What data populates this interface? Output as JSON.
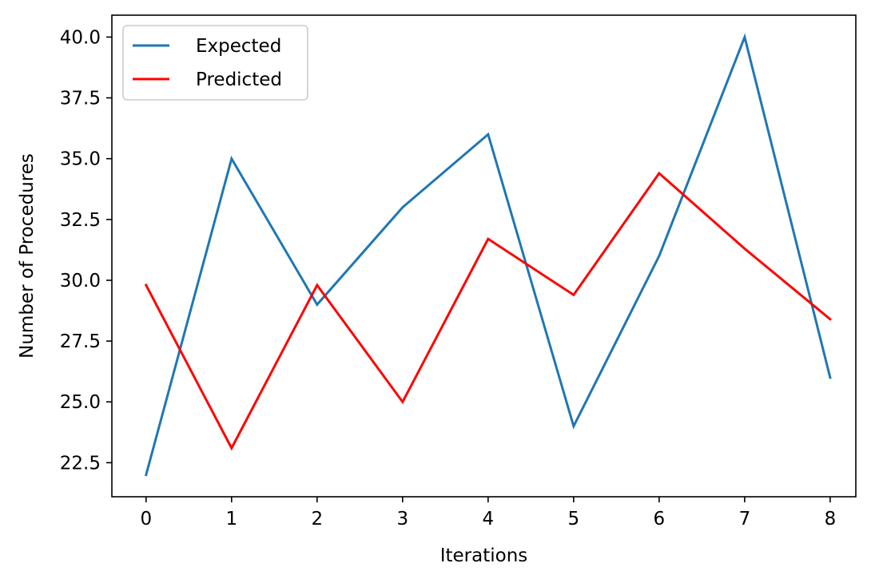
{
  "chart_data": {
    "type": "line",
    "title": "",
    "xlabel": "Iterations",
    "ylabel": "Number of Procedures",
    "x": [
      0,
      1,
      2,
      3,
      4,
      5,
      6,
      7,
      8
    ],
    "xlim": [
      -0.4,
      8.3
    ],
    "ylim": [
      21.1,
      40.9
    ],
    "xticks": [
      0,
      1,
      2,
      3,
      4,
      5,
      6,
      7,
      8
    ],
    "xtick_labels": [
      "0",
      "1",
      "2",
      "3",
      "4",
      "5",
      "6",
      "7",
      "8"
    ],
    "yticks": [
      22.5,
      25.0,
      27.5,
      30.0,
      32.5,
      35.0,
      37.5,
      40.0
    ],
    "ytick_labels": [
      "22.5",
      "25.0",
      "27.5",
      "30.0",
      "32.5",
      "35.0",
      "37.5",
      "40.0"
    ],
    "grid": false,
    "legend_position": "top-left",
    "series": [
      {
        "name": "Expected",
        "color": "#1f77b4",
        "values": [
          22,
          35,
          29,
          33,
          36,
          24,
          31,
          40,
          26
        ]
      },
      {
        "name": "Predicted",
        "color": "#ff0000",
        "values": [
          29.8,
          23.1,
          29.8,
          25,
          31.7,
          29.4,
          34.4,
          31.3,
          28.4
        ]
      }
    ]
  }
}
